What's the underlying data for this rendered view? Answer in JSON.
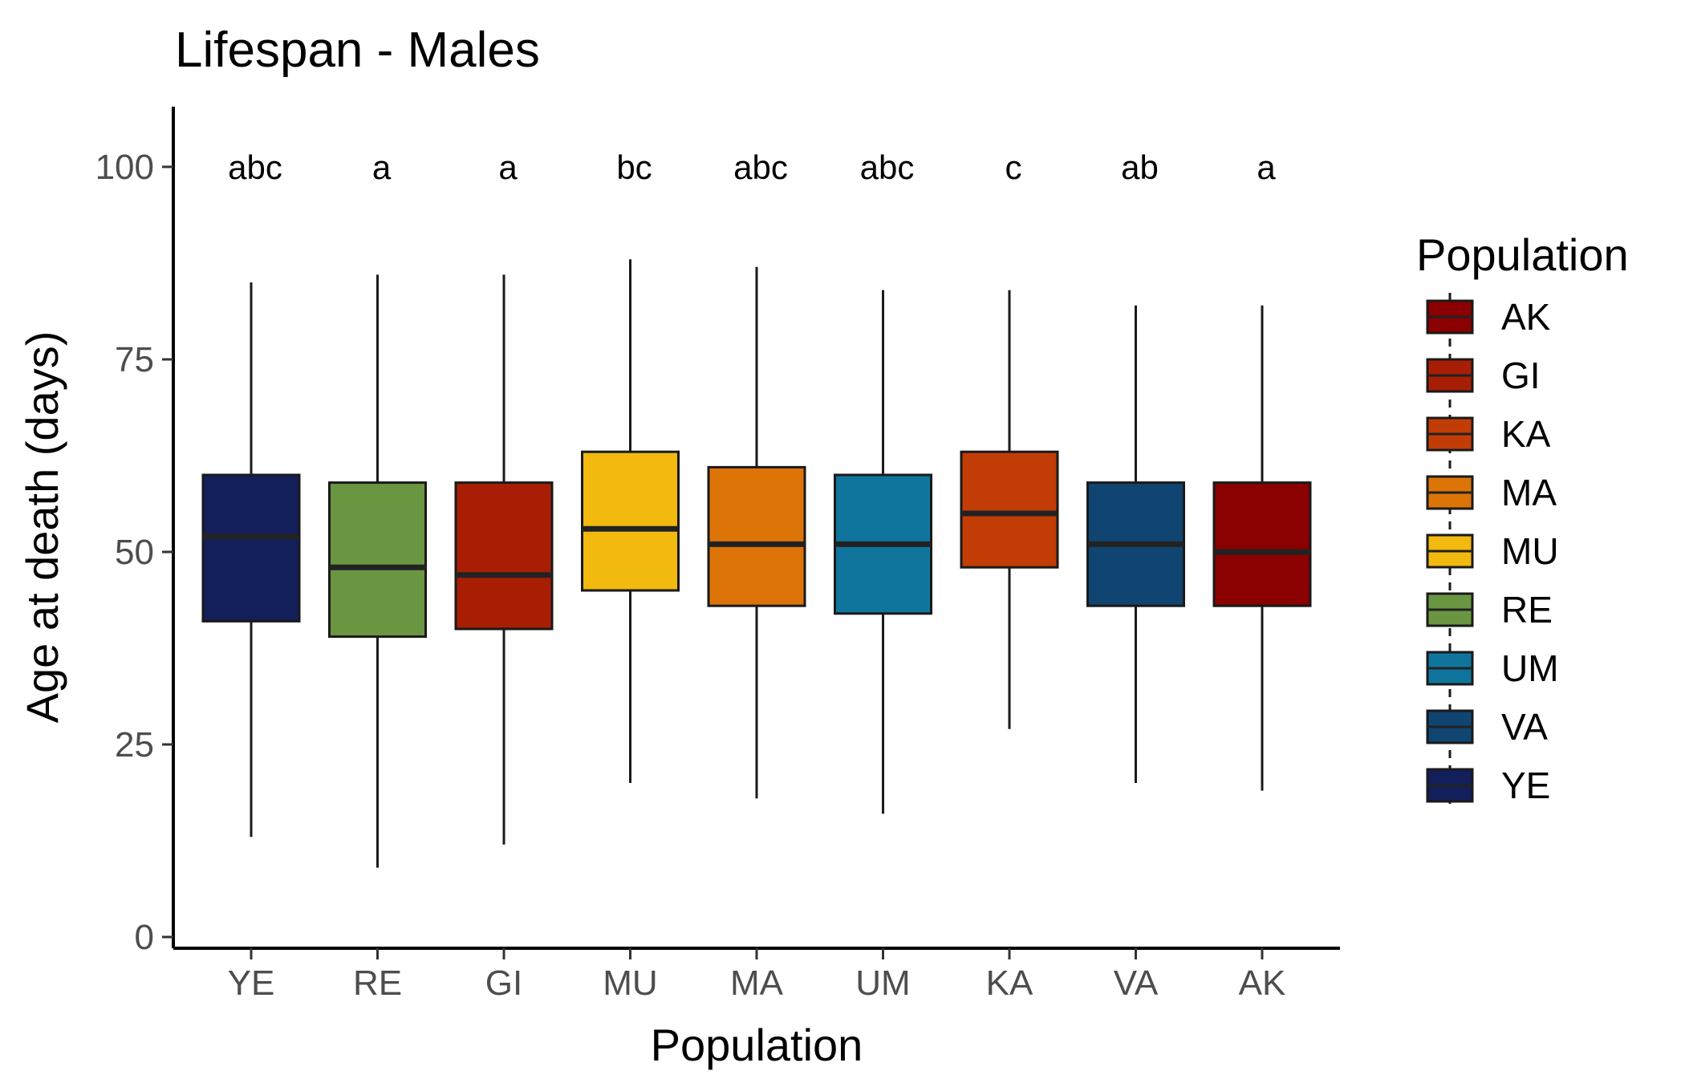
{
  "chart_data": {
    "type": "boxplot",
    "title": "Lifespan - Males",
    "xlabel": "Population",
    "ylabel": "Age at death (days)",
    "ylim": [
      0,
      106
    ],
    "yticks": [
      0,
      25,
      50,
      75,
      100
    ],
    "grid": false,
    "categories": [
      "YE",
      "RE",
      "GI",
      "MU",
      "MA",
      "UM",
      "KA",
      "VA",
      "AK"
    ],
    "boxes": [
      {
        "category": "YE",
        "min": 13,
        "q1": 41,
        "median": 52,
        "q3": 60,
        "max": 85,
        "letters": "abc",
        "color": "#131F5A"
      },
      {
        "category": "RE",
        "min": 9,
        "q1": 39,
        "median": 48,
        "q3": 59,
        "max": 86,
        "letters": "a",
        "color": "#6A9641"
      },
      {
        "category": "GI",
        "min": 12,
        "q1": 40,
        "median": 47,
        "q3": 59,
        "max": 86,
        "letters": "a",
        "color": "#A81E05"
      },
      {
        "category": "MU",
        "min": 20,
        "q1": 45,
        "median": 53,
        "q3": 63,
        "max": 88,
        "letters": "bc",
        "color": "#F2B90E"
      },
      {
        "category": "MA",
        "min": 18,
        "q1": 43,
        "median": 51,
        "q3": 61,
        "max": 87,
        "letters": "abc",
        "color": "#DC7408"
      },
      {
        "category": "UM",
        "min": 16,
        "q1": 42,
        "median": 51,
        "q3": 60,
        "max": 84,
        "letters": "abc",
        "color": "#10759D"
      },
      {
        "category": "KA",
        "min": 27,
        "q1": 48,
        "median": 55,
        "q3": 63,
        "max": 84,
        "letters": "c",
        "color": "#C23C05"
      },
      {
        "category": "VA",
        "min": 20,
        "q1": 43,
        "median": 51,
        "q3": 59,
        "max": 82,
        "letters": "ab",
        "color": "#0F4570"
      },
      {
        "category": "AK",
        "min": 19,
        "q1": 43,
        "median": 50,
        "q3": 59,
        "max": 82,
        "letters": "a",
        "color": "#8B0000"
      }
    ],
    "letters_y": 100,
    "legend": {
      "title": "Population",
      "position": "right",
      "entries": [
        {
          "label": "AK",
          "color": "#8B0000"
        },
        {
          "label": "GI",
          "color": "#A81E05"
        },
        {
          "label": "KA",
          "color": "#C23C05"
        },
        {
          "label": "MA",
          "color": "#DC7408"
        },
        {
          "label": "MU",
          "color": "#F2B90E"
        },
        {
          "label": "RE",
          "color": "#6A9641"
        },
        {
          "label": "UM",
          "color": "#10759D"
        },
        {
          "label": "VA",
          "color": "#0F4570"
        },
        {
          "label": "YE",
          "color": "#131F5A"
        }
      ]
    }
  }
}
